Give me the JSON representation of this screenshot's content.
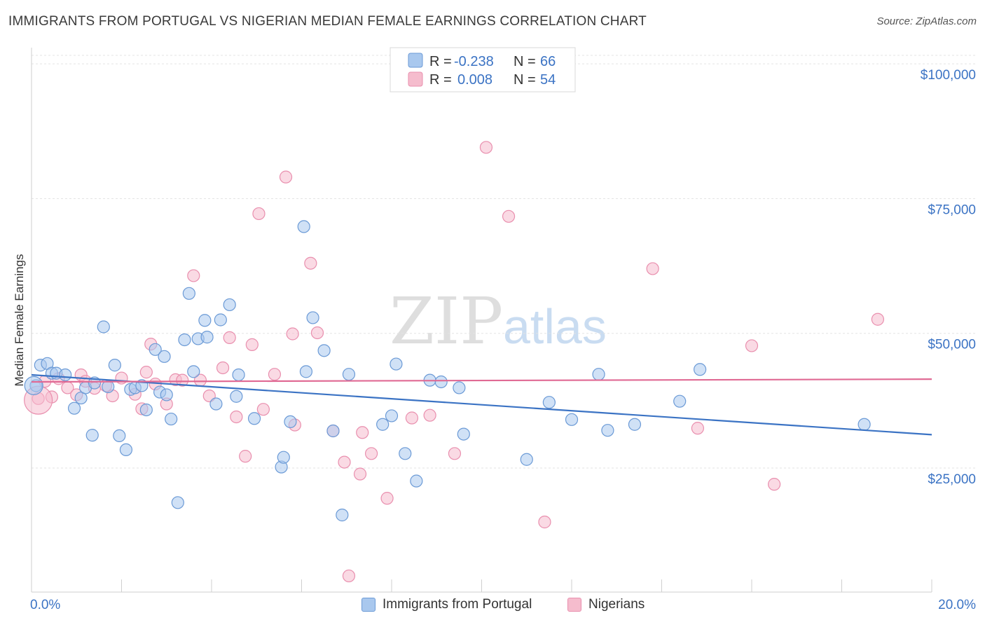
{
  "title": "IMMIGRANTS FROM PORTUGAL VS NIGERIAN MEDIAN FEMALE EARNINGS CORRELATION CHART",
  "source": "Source: ZipAtlas.com",
  "watermark": {
    "zip": "ZIP",
    "atlas": "atlas"
  },
  "legend_box": {
    "rows": [
      {
        "r_label": "R =",
        "r_value": "-0.238",
        "n_label": "N =",
        "n_value": "66"
      },
      {
        "r_label": "R =",
        "r_value": "0.008",
        "n_label": "N =",
        "n_value": "54"
      }
    ]
  },
  "bottom_legend": [
    "Immigrants from Portugal",
    "Nigerians"
  ],
  "colors": {
    "blue": "#3b73c4",
    "blue_fill": "#a9c8ee",
    "blue_stroke": "#6b9ad6",
    "pink": "#e06a94",
    "pink_fill": "#f5bccd",
    "pink_stroke": "#e98fae"
  },
  "chart_data": {
    "type": "scatter",
    "title": "IMMIGRANTS FROM PORTUGAL VS NIGERIAN MEDIAN FEMALE EARNINGS CORRELATION CHART",
    "xlabel": "",
    "ylabel": "Median Female Earnings",
    "xlim": [
      0,
      20
    ],
    "ylim": [
      2000,
      103000
    ],
    "x_tick_labels": [
      "0.0%",
      "20.0%"
    ],
    "y_ticks": [
      25000,
      50000,
      75000,
      100000
    ],
    "y_tick_labels": [
      "$25,000",
      "$50,000",
      "$75,000",
      "$100,000"
    ],
    "grid": true,
    "legend_position": "top-center",
    "series": [
      {
        "name": "Immigrants from Portugal",
        "color": "#3b73c4",
        "trend": {
          "x": [
            0,
            20
          ],
          "y": [
            42300,
            31200
          ]
        },
        "points": [
          [
            0.1,
            40300
          ],
          [
            0.2,
            44100
          ],
          [
            0.35,
            44400
          ],
          [
            0.45,
            42600
          ],
          [
            0.55,
            42600
          ],
          [
            0.75,
            42300
          ],
          [
            0.95,
            36100
          ],
          [
            1.1,
            38000
          ],
          [
            1.2,
            39900
          ],
          [
            1.35,
            31100
          ],
          [
            1.4,
            40800
          ],
          [
            1.6,
            51200
          ],
          [
            1.7,
            40100
          ],
          [
            1.85,
            44100
          ],
          [
            1.95,
            31000
          ],
          [
            2.1,
            28400
          ],
          [
            2.2,
            39600
          ],
          [
            2.3,
            39900
          ],
          [
            2.45,
            40300
          ],
          [
            2.55,
            35800
          ],
          [
            2.75,
            47000
          ],
          [
            2.85,
            39100
          ],
          [
            2.95,
            45700
          ],
          [
            3.1,
            34100
          ],
          [
            3.25,
            18600
          ],
          [
            3.4,
            48800
          ],
          [
            3.5,
            57400
          ],
          [
            3.6,
            42900
          ],
          [
            3.7,
            49000
          ],
          [
            3.85,
            52400
          ],
          [
            3.9,
            49300
          ],
          [
            4.1,
            36900
          ],
          [
            4.2,
            52500
          ],
          [
            4.4,
            55300
          ],
          [
            4.55,
            38300
          ],
          [
            4.6,
            42300
          ],
          [
            4.95,
            34200
          ],
          [
            5.55,
            25200
          ],
          [
            5.6,
            27000
          ],
          [
            5.75,
            33600
          ],
          [
            6.05,
            69800
          ],
          [
            6.1,
            42900
          ],
          [
            6.25,
            52900
          ],
          [
            6.5,
            46800
          ],
          [
            6.7,
            31900
          ],
          [
            6.9,
            16300
          ],
          [
            7.05,
            42400
          ],
          [
            7.8,
            33100
          ],
          [
            8.0,
            34700
          ],
          [
            8.1,
            44300
          ],
          [
            8.3,
            27700
          ],
          [
            8.55,
            22600
          ],
          [
            8.85,
            41300
          ],
          [
            9.1,
            41000
          ],
          [
            9.5,
            39900
          ],
          [
            9.6,
            31300
          ],
          [
            11.0,
            26600
          ],
          [
            11.5,
            37200
          ],
          [
            12.0,
            34000
          ],
          [
            12.6,
            42400
          ],
          [
            12.8,
            32000
          ],
          [
            13.4,
            33100
          ],
          [
            14.4,
            37400
          ],
          [
            14.85,
            43300
          ],
          [
            18.5,
            33100
          ],
          [
            3.0,
            38600
          ]
        ]
      },
      {
        "name": "Nigerians",
        "color": "#e06a94",
        "trend": {
          "x": [
            0,
            20
          ],
          "y": [
            41000,
            41500
          ]
        },
        "points": [
          [
            0.15,
            37900
          ],
          [
            0.3,
            41100
          ],
          [
            0.45,
            38200
          ],
          [
            0.6,
            41600
          ],
          [
            0.8,
            39900
          ],
          [
            1.0,
            38600
          ],
          [
            1.1,
            42300
          ],
          [
            1.2,
            41100
          ],
          [
            1.4,
            39800
          ],
          [
            1.65,
            40300
          ],
          [
            1.8,
            38400
          ],
          [
            2.0,
            41700
          ],
          [
            2.3,
            38700
          ],
          [
            2.45,
            36000
          ],
          [
            2.55,
            42800
          ],
          [
            2.65,
            48000
          ],
          [
            2.75,
            40600
          ],
          [
            3.0,
            36900
          ],
          [
            3.2,
            41400
          ],
          [
            3.35,
            41300
          ],
          [
            3.6,
            60700
          ],
          [
            3.75,
            41300
          ],
          [
            3.95,
            38400
          ],
          [
            4.25,
            43600
          ],
          [
            4.4,
            49200
          ],
          [
            4.55,
            34500
          ],
          [
            4.75,
            27200
          ],
          [
            4.9,
            47900
          ],
          [
            5.05,
            72200
          ],
          [
            5.15,
            35900
          ],
          [
            5.4,
            42400
          ],
          [
            5.65,
            79000
          ],
          [
            5.8,
            49900
          ],
          [
            5.85,
            33000
          ],
          [
            6.2,
            63000
          ],
          [
            6.35,
            50100
          ],
          [
            6.7,
            31900
          ],
          [
            6.95,
            26100
          ],
          [
            7.05,
            5000
          ],
          [
            7.3,
            23900
          ],
          [
            7.35,
            31600
          ],
          [
            7.55,
            27700
          ],
          [
            7.9,
            19400
          ],
          [
            8.45,
            34300
          ],
          [
            8.85,
            34800
          ],
          [
            9.4,
            27700
          ],
          [
            10.1,
            84500
          ],
          [
            10.6,
            71700
          ],
          [
            11.4,
            15000
          ],
          [
            13.8,
            62000
          ],
          [
            14.8,
            32400
          ],
          [
            16.0,
            47700
          ],
          [
            16.5,
            22000
          ],
          [
            18.8,
            52600
          ]
        ]
      }
    ]
  }
}
